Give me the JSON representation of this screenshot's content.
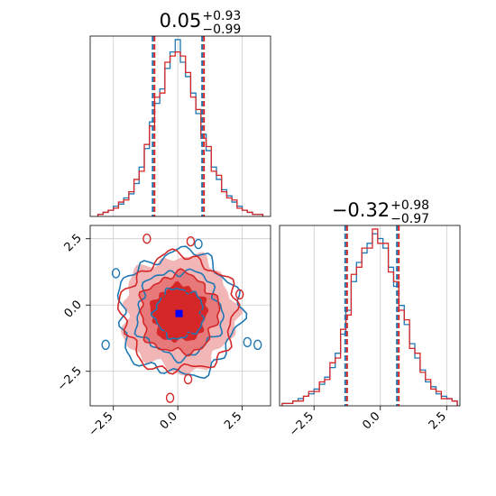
{
  "chart_data": [
    {
      "type": "histogram",
      "panel": "param-1-marginal",
      "title": {
        "median": "0.05",
        "plus": "+0.93",
        "minus": "−0.99"
      },
      "xlim": [
        -3.4,
        3.6
      ],
      "grid": true,
      "series": [
        {
          "color": "#1f77b4",
          "bin_centers": [
            -3.0,
            -2.8,
            -2.6,
            -2.4,
            -2.2,
            -2.0,
            -1.8,
            -1.6,
            -1.4,
            -1.2,
            -1.0,
            -0.8,
            -0.6,
            -0.4,
            -0.2,
            0.0,
            0.2,
            0.4,
            0.6,
            0.8,
            1.0,
            1.2,
            1.4,
            1.6,
            1.8,
            2.0,
            2.2,
            2.4,
            2.6,
            2.8,
            3.0,
            3.2
          ],
          "counts": [
            1,
            2,
            3,
            5,
            6,
            9,
            11,
            16,
            24,
            33,
            46,
            55,
            62,
            72,
            80,
            86,
            75,
            68,
            60,
            50,
            40,
            32,
            24,
            18,
            13,
            10,
            7,
            5,
            3,
            2,
            1,
            1
          ]
        },
        {
          "color": "#d62728",
          "bin_centers": [
            -3.0,
            -2.8,
            -2.6,
            -2.4,
            -2.2,
            -2.0,
            -1.8,
            -1.6,
            -1.4,
            -1.2,
            -1.0,
            -0.8,
            -0.6,
            -0.4,
            -0.2,
            0.0,
            0.2,
            0.4,
            0.6,
            0.8,
            1.0,
            1.2,
            1.4,
            1.6,
            1.8,
            2.0,
            2.2,
            2.4,
            2.6,
            2.8,
            3.0,
            3.2
          ],
          "counts": [
            1,
            2,
            3,
            4,
            7,
            8,
            12,
            18,
            22,
            35,
            44,
            58,
            60,
            75,
            78,
            80,
            78,
            70,
            58,
            52,
            38,
            34,
            22,
            20,
            12,
            9,
            8,
            4,
            3,
            2,
            1,
            1
          ]
        }
      ],
      "quantile_lines": [
        -0.94,
        0.05,
        0.98
      ]
    },
    {
      "type": "contour",
      "panel": "joint-2d",
      "xlim": [
        -3.4,
        3.6
      ],
      "ylim": [
        -3.8,
        3.0
      ],
      "xticks": [
        "−2.5",
        "0.0",
        "2.5"
      ],
      "yticks": [
        "2.5",
        "0.0",
        "−2.5"
      ],
      "grid": true,
      "peak_marker": {
        "x": 0.05,
        "y": -0.32
      },
      "series": [
        {
          "color": "#1f77b4",
          "levels_sigma": [
            0.8,
            1.5,
            2.2
          ]
        },
        {
          "color": "#d62728",
          "levels_sigma": [
            0.8,
            1.5,
            2.2
          ]
        }
      ]
    },
    {
      "type": "histogram",
      "panel": "param-2-marginal",
      "title": {
        "median": "−0.32",
        "plus": "+0.98",
        "minus": "−0.97"
      },
      "xlim": [
        -3.8,
        3.0
      ],
      "xticks": [
        "−2.5",
        "0.0",
        "2.5"
      ],
      "grid": true,
      "series": [
        {
          "color": "#1f77b4",
          "bin_centers": [
            -3.6,
            -3.4,
            -3.2,
            -3.0,
            -2.8,
            -2.6,
            -2.4,
            -2.2,
            -2.0,
            -1.8,
            -1.6,
            -1.4,
            -1.2,
            -1.0,
            -0.8,
            -0.6,
            -0.4,
            -0.2,
            0.0,
            0.2,
            0.4,
            0.6,
            0.8,
            1.0,
            1.2,
            1.4,
            1.6,
            1.8,
            2.0,
            2.2,
            2.4,
            2.6,
            2.8
          ],
          "counts": [
            1,
            1,
            2,
            3,
            4,
            5,
            7,
            9,
            12,
            16,
            22,
            30,
            40,
            52,
            60,
            64,
            68,
            72,
            70,
            66,
            58,
            50,
            42,
            34,
            26,
            20,
            15,
            10,
            8,
            5,
            4,
            3,
            2
          ]
        },
        {
          "color": "#d62728",
          "bin_centers": [
            -3.6,
            -3.4,
            -3.2,
            -3.0,
            -2.8,
            -2.6,
            -2.4,
            -2.2,
            -2.0,
            -1.8,
            -1.6,
            -1.4,
            -1.2,
            -1.0,
            -0.8,
            -0.6,
            -0.4,
            -0.2,
            0.0,
            0.2,
            0.4,
            0.6,
            0.8,
            1.0,
            1.2,
            1.4,
            1.6,
            1.8,
            2.0,
            2.2,
            2.4,
            2.6,
            2.8
          ],
          "counts": [
            1,
            1,
            2,
            2,
            4,
            6,
            6,
            10,
            11,
            18,
            20,
            32,
            38,
            55,
            58,
            66,
            66,
            74,
            68,
            68,
            56,
            52,
            40,
            36,
            24,
            22,
            14,
            11,
            7,
            6,
            3,
            3,
            2
          ]
        }
      ],
      "quantile_lines": [
        -1.29,
        -0.32,
        0.66
      ]
    }
  ]
}
